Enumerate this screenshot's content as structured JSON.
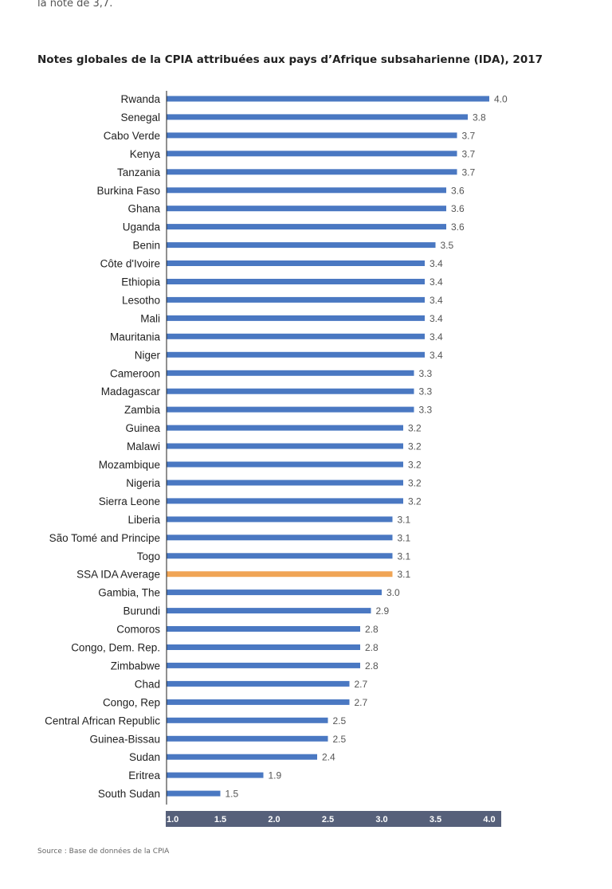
{
  "intro_fragment": "la note de 3,7.",
  "footer": {
    "source": "Source : Base de données de la CPIA"
  },
  "colors": {
    "bar": "#4a78c2",
    "highlight": "#f0a556",
    "axis_band": "#56607a"
  },
  "chart_data": {
    "type": "bar",
    "orientation": "horizontal",
    "title": "Notes globales de la CPIA attribuées aux pays d’Afrique subsaharienne (IDA), 2017",
    "xlabel": "",
    "ylabel": "",
    "xlim": [
      1.0,
      4.0
    ],
    "xticks": [
      "1.0",
      "1.5",
      "2.0",
      "2.5",
      "3.0",
      "3.5",
      "4.0"
    ],
    "highlight_category": "SSA IDA Average",
    "categories": [
      "Rwanda",
      "Senegal",
      "Cabo Verde",
      "Kenya",
      "Tanzania",
      "Burkina Faso",
      "Ghana",
      "Uganda",
      "Benin",
      "Côte d'Ivoire",
      "Ethiopia",
      "Lesotho",
      "Mali",
      "Mauritania",
      "Niger",
      "Cameroon",
      "Madagascar",
      "Zambia",
      "Guinea",
      "Malawi",
      "Mozambique",
      "Nigeria",
      "Sierra Leone",
      "Liberia",
      "São Tomé and Principe",
      "Togo",
      "SSA IDA Average",
      "Gambia, The",
      "Burundi",
      "Comoros",
      "Congo, Dem. Rep.",
      "Zimbabwe",
      "Chad",
      "Congo, Rep",
      "Central African Republic",
      "Guinea-Bissau",
      "Sudan",
      "Eritrea",
      "South Sudan"
    ],
    "values": [
      4.0,
      3.8,
      3.7,
      3.7,
      3.7,
      3.6,
      3.6,
      3.6,
      3.5,
      3.4,
      3.4,
      3.4,
      3.4,
      3.4,
      3.4,
      3.3,
      3.3,
      3.3,
      3.2,
      3.2,
      3.2,
      3.2,
      3.2,
      3.1,
      3.1,
      3.1,
      3.1,
      3.0,
      2.9,
      2.8,
      2.8,
      2.8,
      2.7,
      2.7,
      2.5,
      2.5,
      2.4,
      1.9,
      1.5
    ],
    "value_labels": [
      "4.0",
      "3.8",
      "3.7",
      "3.7",
      "3.7",
      "3.6",
      "3.6",
      "3.6",
      "3.5",
      "3.4",
      "3.4",
      "3.4",
      "3.4",
      "3.4",
      "3.4",
      "3.3",
      "3.3",
      "3.3",
      "3.2",
      "3.2",
      "3.2",
      "3.2",
      "3.2",
      "3.1",
      "3.1",
      "3.1",
      "3.1",
      "3.0",
      "2.9",
      "2.8",
      "2.8",
      "2.8",
      "2.7",
      "2.7",
      "2.5",
      "2.5",
      "2.4",
      "1.9",
      "1.5"
    ]
  }
}
